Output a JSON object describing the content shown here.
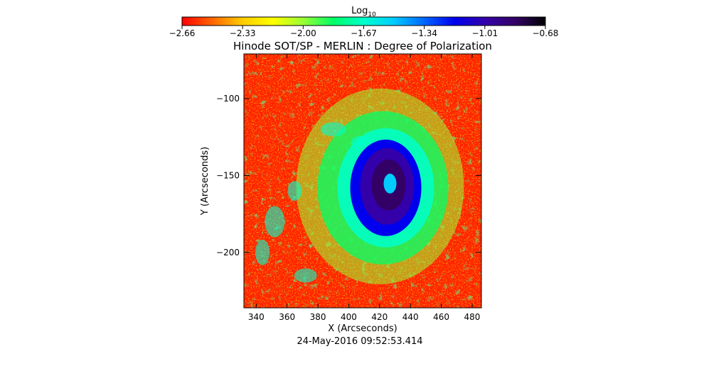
{
  "chart_data": {
    "type": "heatmap",
    "title": "Hinode SOT/SP - MERLIN : Degree of Polarization",
    "xlabel": "X (Arcseconds)",
    "ylabel": "Y (Arcseconds)",
    "date_label": "24-May-2016 09:52:53.414",
    "x_range": [
      332,
      486
    ],
    "y_range": [
      -236,
      -71
    ],
    "x_ticks": [
      340,
      360,
      380,
      400,
      420,
      440,
      460,
      480
    ],
    "y_ticks": [
      -100,
      -150,
      -200
    ],
    "colorbar": {
      "label_base": "Log",
      "label_sub": "10",
      "range": [
        -2.66,
        -0.68
      ],
      "ticks": [
        "-2.66",
        "-2.33",
        "-2.00",
        "-1.67",
        "-1.34",
        "-1.01",
        "-0.68"
      ],
      "colormap": [
        "#ff0000",
        "#ff6600",
        "#ffcc00",
        "#ffff00",
        "#99ff33",
        "#00ff66",
        "#00ffcc",
        "#00ccff",
        "#0066ff",
        "#0000ee",
        "#3300aa",
        "#330066",
        "#000000"
      ]
    },
    "features": [
      {
        "name": "sunspot umbra",
        "cx": 424,
        "cy": -158,
        "log_value": -0.9
      },
      {
        "name": "penumbra",
        "cx": 424,
        "cy": -158,
        "log_value": -1.7
      }
    ]
  }
}
